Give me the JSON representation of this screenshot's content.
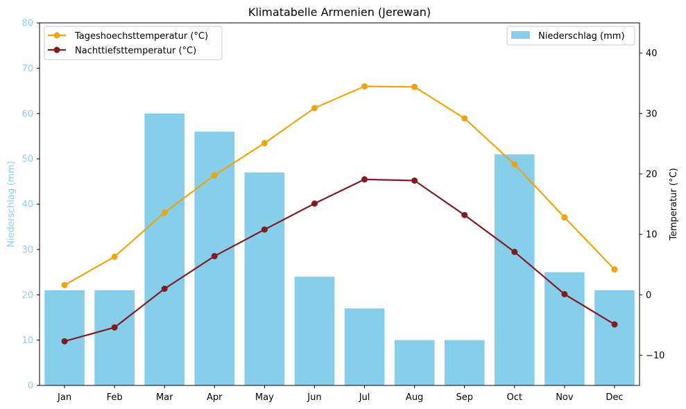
{
  "chart_data": {
    "type": "bar+line",
    "title": "Klimatabelle Armenien (Jerewan)",
    "categories": [
      "Jan",
      "Feb",
      "Mar",
      "Apr",
      "May",
      "Jun",
      "Jul",
      "Aug",
      "Sep",
      "Oct",
      "Nov",
      "Dec"
    ],
    "bars": {
      "name": "Niederschlag (mm)",
      "color": "#87CEEB",
      "values": [
        21,
        21,
        60,
        56,
        47,
        24,
        17,
        10,
        10,
        51,
        25,
        21
      ]
    },
    "lines": [
      {
        "name": "Tageshoechsttemperatur (°C)",
        "color": "#F0A30A",
        "values": [
          1.6,
          6.3,
          13.6,
          19.8,
          25.1,
          30.9,
          34.5,
          34.4,
          29.2,
          21.6,
          12.8,
          4.2
        ]
      },
      {
        "name": "Nachttiefsttemperatur (°C)",
        "color": "#801C1F",
        "values": [
          -7.7,
          -5.4,
          1.0,
          6.4,
          10.8,
          15.1,
          19.1,
          18.9,
          13.2,
          7.1,
          0.1,
          -4.9
        ]
      }
    ],
    "y_left": {
      "label": "Niederschlag (mm)",
      "color": "#87CEEB",
      "range": [
        0,
        80
      ],
      "ticks": [
        "0",
        "10",
        "20",
        "30",
        "40",
        "50",
        "60",
        "70",
        "80"
      ]
    },
    "y_right": {
      "label": "Temperatur (°C)",
      "range": [
        -15,
        45
      ],
      "ticks": [
        "−10",
        "0",
        "10",
        "20",
        "30",
        "40"
      ],
      "tick_values": [
        -10,
        0,
        10,
        20,
        30,
        40
      ]
    },
    "legend_left_placement": "upper-left",
    "legend_right_placement": "upper-right",
    "grid": false
  }
}
